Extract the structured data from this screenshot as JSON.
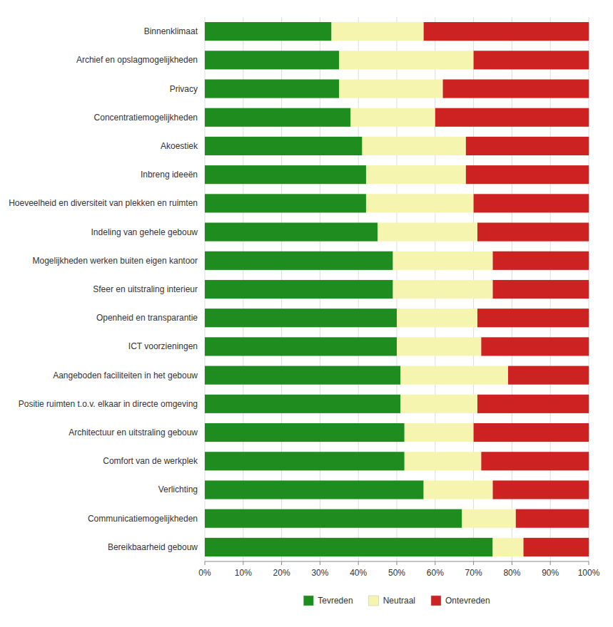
{
  "chart_data": {
    "type": "bar",
    "orientation": "horizontal",
    "stacked": true,
    "categories": [
      "Binnenklimaat",
      "Archief en opslagmogelijkheden",
      "Privacy",
      "Concentratiemogelijkheden",
      "Akoestiek",
      "Inbreng ideeën",
      "Hoeveelheid en diversiteit van plekken en ruimten",
      "Indeling van gehele gebouw",
      "Mogelijkheden werken buiten eigen kantoor",
      "Sfeer en uitstraling interieur",
      "Openheid en transparantie",
      "ICT voorzieningen",
      "Aangeboden faciliteiten in het gebouw",
      "Positie ruimten t.o.v. elkaar in directe omgeving",
      "Architectuur en uitstraling gebouw",
      "Comfort van de werkplek",
      "Verlichting",
      "Communicatiemogelijkheden",
      "Bereikbaarheid gebouw"
    ],
    "series": [
      {
        "name": "Tevreden",
        "color": "#1e8c1e",
        "values": [
          33,
          35,
          35,
          38,
          41,
          42,
          42,
          45,
          49,
          49,
          50,
          50,
          51,
          51,
          52,
          52,
          57,
          67,
          75
        ]
      },
      {
        "name": "Neutraal",
        "color": "#f5f5b0",
        "values": [
          24,
          35,
          27,
          22,
          27,
          26,
          28,
          26,
          26,
          26,
          21,
          22,
          28,
          20,
          18,
          20,
          18,
          14,
          8
        ]
      },
      {
        "name": "Ontevreden",
        "color": "#cc2222",
        "values": [
          43,
          30,
          38,
          40,
          32,
          32,
          30,
          29,
          25,
          25,
          29,
          28,
          21,
          29,
          30,
          28,
          25,
          19,
          17
        ]
      }
    ],
    "xlim": [
      0,
      100
    ],
    "xticks": [
      {
        "value": 0,
        "label": "0%"
      },
      {
        "value": 10,
        "label": "10%"
      },
      {
        "value": 20,
        "label": "20%"
      },
      {
        "value": 30,
        "label": "30%"
      },
      {
        "value": 40,
        "label": "40%"
      },
      {
        "value": 50,
        "label": "50%"
      },
      {
        "value": 60,
        "label": "60%"
      },
      {
        "value": 70,
        "label": "70%"
      },
      {
        "value": 80,
        "label": "80%"
      },
      {
        "value": 90,
        "label": "90%"
      },
      {
        "value": 100,
        "label": "100%"
      }
    ],
    "grid": true,
    "legend": "bottom"
  }
}
